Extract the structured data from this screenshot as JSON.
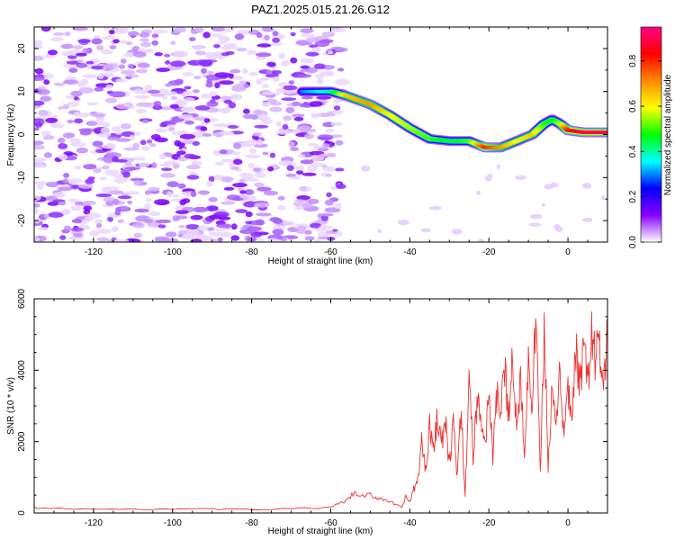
{
  "title": "PAZ1.2025.015.21.26.G12",
  "colors": {
    "snr_line": "#ee3333",
    "axis": "#000000",
    "background": "#ffffff"
  },
  "chart_data": [
    {
      "type": "heatmap",
      "title": "PAZ1.2025.015.21.26.G12",
      "xlabel": "Height of straight line (km)",
      "ylabel": "Frequency (Hz)",
      "xlim": [
        -135,
        10
      ],
      "ylim": [
        -25,
        25
      ],
      "xticks": [
        -120,
        -100,
        -80,
        -60,
        -40,
        -20,
        0
      ],
      "yticks": [
        -20,
        -10,
        0,
        10,
        20
      ],
      "colorbar": {
        "label": "Normalized spectral amplitude",
        "range": [
          0.0,
          0.95
        ],
        "ticks": [
          0.0,
          0.2,
          0.4,
          0.6,
          0.8
        ],
        "colormap": [
          "#ffffff",
          "#8800ff",
          "#0000ff",
          "#00ffff",
          "#00ff00",
          "#ffff00",
          "#ff8800",
          "#ff0000",
          "#ff0088"
        ]
      },
      "ridge": {
        "x": [
          -67,
          -60,
          -56,
          -50,
          -45,
          -40,
          -35,
          -30,
          -25,
          -21,
          -17,
          -13,
          -9,
          -6,
          -4,
          -2,
          0,
          4,
          10
        ],
        "y": [
          10,
          10,
          9,
          7,
          4.5,
          1.5,
          -1,
          -1.5,
          -1.5,
          -3,
          -3,
          -1.5,
          0,
          2.5,
          3.5,
          2.5,
          1,
          0.5,
          0.5
        ],
        "amplitude": [
          0.3,
          0.4,
          0.65,
          0.7,
          0.6,
          0.55,
          0.5,
          0.45,
          0.5,
          0.8,
          0.7,
          0.6,
          0.65,
          0.5,
          0.45,
          0.55,
          0.8,
          0.9,
          0.9
        ]
      },
      "noise_region": {
        "x_range": [
          -135,
          -57
        ],
        "y_range": [
          -25,
          25
        ],
        "amplitude_max": 0.25
      },
      "sparse_region": {
        "x_range": [
          -57,
          10
        ],
        "amplitude_max": 0.1
      }
    },
    {
      "type": "line",
      "xlabel": "Height of straight line (km)",
      "ylabel": "SNR (10 * v/v)",
      "xlim": [
        -135,
        10
      ],
      "ylim": [
        0,
        6000
      ],
      "xticks": [
        -120,
        -100,
        -80,
        -60,
        -40,
        -20,
        0
      ],
      "yticks": [
        0,
        2000,
        4000,
        6000
      ],
      "series": [
        {
          "x": [
            -135,
            -130,
            -120,
            -110,
            -100,
            -90,
            -80,
            -70,
            -60,
            -56,
            -54,
            -52,
            -50,
            -48,
            -46,
            -44,
            -42,
            -41,
            -40,
            -39,
            -38,
            -37,
            -36,
            -35,
            -34,
            -33,
            -32,
            -31,
            -30,
            -29,
            -28,
            -27,
            -26,
            -25,
            -24,
            -23,
            -22,
            -21,
            -20,
            -19,
            -18,
            -17,
            -16,
            -15,
            -14,
            -13,
            -12,
            -11,
            -10,
            -9,
            -8,
            -7,
            -6,
            -5,
            -4,
            -3,
            -2,
            -1,
            0,
            1,
            2,
            3,
            4,
            5,
            6,
            7,
            8,
            9,
            10
          ],
          "y": [
            150,
            120,
            110,
            100,
            120,
            110,
            100,
            120,
            150,
            350,
            550,
            450,
            500,
            420,
            380,
            250,
            150,
            450,
            300,
            650,
            900,
            2000,
            1200,
            2500,
            1700,
            2800,
            1900,
            2500,
            1300,
            2600,
            1000,
            2900,
            400,
            4000,
            1500,
            3300,
            2600,
            1800,
            3500,
            1600,
            3200,
            2800,
            3900,
            2900,
            4200,
            2500,
            3800,
            1800,
            4500,
            2800,
            6000,
            1000,
            5300,
            1200,
            3500,
            2200,
            4000,
            2000,
            3600,
            2300,
            4600,
            3600,
            4400,
            3700,
            5000,
            4300,
            4600,
            3600,
            4900
          ]
        }
      ]
    }
  ]
}
